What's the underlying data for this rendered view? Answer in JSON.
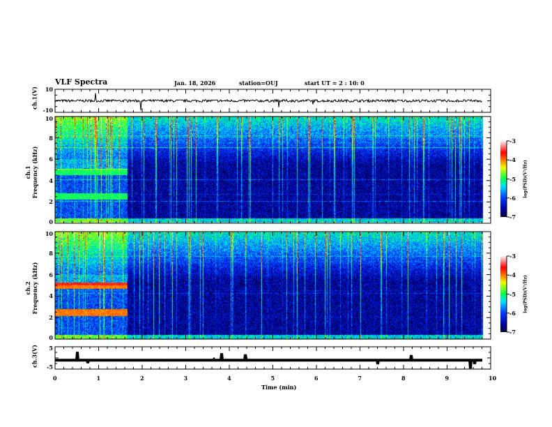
{
  "header": {
    "title": "VLF Spectra",
    "date": "Jan. 18, 2026",
    "station": "station=OUJ",
    "start": "start UT =  2 : 10: 0"
  },
  "chart_data": [
    {
      "type": "line",
      "name": "ch1-waveform",
      "ylabel": "ch.1(V)",
      "ylim": [
        -10,
        10
      ],
      "yticks": [
        "10",
        "-10"
      ],
      "baseline": 0,
      "noise_amplitude": 1
    },
    {
      "type": "heatmap",
      "name": "ch1-spectrogram",
      "ylabel_top": "ch.1",
      "ylabel": "Frequency (kHz)",
      "ylim": [
        0,
        10
      ],
      "yticks": [
        "0",
        "2",
        "4",
        "6",
        "8",
        "10"
      ],
      "colorbar": {
        "label": "log(PSD)(V²/Hz)",
        "range": [
          -7,
          -3
        ],
        "ticks": [
          "-3",
          "-4",
          "-5",
          "-6",
          "-7"
        ]
      },
      "features": [
        {
          "t_end_min": 1.65,
          "freq_khz": [
            2.5,
            4.8
          ],
          "level": -5
        }
      ]
    },
    {
      "type": "heatmap",
      "name": "ch2-spectrogram",
      "ylabel_top": "ch.2",
      "ylabel": "Frequency (kHz)",
      "ylim": [
        0,
        10
      ],
      "yticks": [
        "0",
        "2",
        "4",
        "6",
        "8",
        "10"
      ],
      "colorbar": {
        "label": "log(PSD)(V²/Hz)",
        "range": [
          -7,
          -3
        ],
        "ticks": [
          "-3",
          "-4",
          "-5",
          "-6",
          "-7"
        ]
      },
      "features": [
        {
          "t_end_min": 1.65,
          "freq_khz": [
            2.5,
            5.0
          ],
          "level": -4
        }
      ]
    },
    {
      "type": "line",
      "name": "ch3-waveform",
      "ylabel": "ch.3(V)",
      "ylim": [
        -5,
        5
      ],
      "yticks": [
        "5",
        "-5"
      ],
      "baseline": -1
    }
  ],
  "xaxis": {
    "label": "Time (min)",
    "range": [
      0,
      10
    ],
    "ticks": [
      "0",
      "1",
      "2",
      "3",
      "4",
      "5",
      "6",
      "7",
      "8",
      "9",
      "10"
    ]
  }
}
